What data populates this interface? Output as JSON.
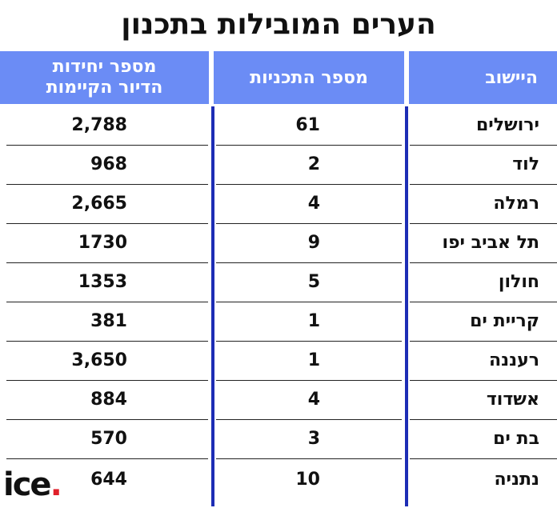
{
  "title": "הערים המובילות בתכנון",
  "headers": {
    "city": "היישוב",
    "plans": "מספר התכניות",
    "units_line1": "מספר יחידות",
    "units_line2": "הדיור הקיימות"
  },
  "rows": [
    {
      "city": "ירושלים",
      "plans": "61",
      "units": "2,788"
    },
    {
      "city": "לוד",
      "plans": "2",
      "units": "968"
    },
    {
      "city": "רמלה",
      "plans": "4",
      "units": "2,665"
    },
    {
      "city": "תל אביב יפו",
      "plans": "9",
      "units": "1730"
    },
    {
      "city": "חולון",
      "plans": "5",
      "units": "1353"
    },
    {
      "city": "קריית ים",
      "plans": "1",
      "units": "381"
    },
    {
      "city": "רעננה",
      "plans": "1",
      "units": "3,650"
    },
    {
      "city": "אשדוד",
      "plans": "4",
      "units": "884"
    },
    {
      "city": "בת ים",
      "plans": "3",
      "units": "570"
    },
    {
      "city": "נתניה",
      "plans": "10",
      "units": "644"
    }
  ],
  "logo": {
    "text": "ice",
    "dot": "."
  },
  "colors": {
    "header_bg": "#6b8cf5",
    "divider": "#1d2db5",
    "logo_dot": "#e0202a"
  }
}
